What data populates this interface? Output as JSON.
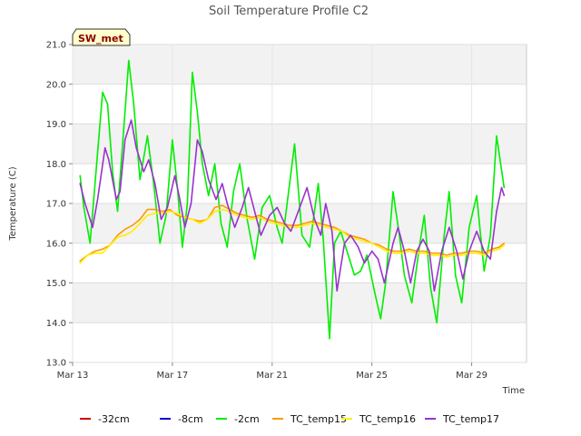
{
  "chart_data": {
    "type": "line",
    "title": "Soil Temperature Profile C2",
    "xlabel": "Time",
    "ylabel": "Temperature (C)",
    "badge": "SW_met",
    "ylim": [
      13.0,
      21.0
    ],
    "xlim": [
      0,
      18.2
    ],
    "yticks": [
      13.0,
      14.0,
      15.0,
      16.0,
      17.0,
      18.0,
      19.0,
      20.0,
      21.0
    ],
    "ytick_labels": [
      "13.0",
      "14.0",
      "15.0",
      "16.0",
      "17.0",
      "18.0",
      "19.0",
      "20.0",
      "21.0"
    ],
    "xticks": [
      0,
      4,
      8,
      12,
      16
    ],
    "xtick_labels": [
      "Mar 13",
      "Mar 17",
      "Mar 21",
      "Mar 25",
      "Mar 29"
    ],
    "grid": true,
    "legend_placement": "bottom",
    "series": [
      {
        "name": "-32cm",
        "color": "#cc0000",
        "x": [],
        "y": []
      },
      {
        "name": "-8cm",
        "color": "#0000cc",
        "x": [],
        "y": []
      },
      {
        "name": "-2cm",
        "color": "#00ee00",
        "x": [
          0.3,
          0.45,
          0.7,
          0.9,
          1.2,
          1.4,
          1.6,
          1.8,
          2.1,
          2.25,
          2.45,
          2.7,
          3.0,
          3.25,
          3.5,
          3.75,
          4.0,
          4.2,
          4.4,
          4.6,
          4.8,
          5.0,
          5.2,
          5.45,
          5.7,
          5.95,
          6.2,
          6.45,
          6.7,
          7.0,
          7.3,
          7.6,
          7.9,
          8.2,
          8.4,
          8.6,
          8.9,
          9.2,
          9.5,
          9.85,
          10.05,
          10.3,
          10.5,
          10.75,
          11.05,
          11.3,
          11.55,
          11.8,
          12.1,
          12.35,
          12.55,
          12.85,
          13.1,
          13.3,
          13.6,
          13.9,
          14.1,
          14.35,
          14.6,
          14.9,
          15.1,
          15.35,
          15.6,
          15.9,
          16.2,
          16.5,
          16.75,
          17.0,
          17.3
        ],
        "y": [
          17.7,
          16.9,
          16.0,
          17.5,
          19.8,
          19.5,
          17.8,
          16.8,
          19.3,
          20.6,
          19.5,
          17.6,
          18.7,
          17.5,
          16.0,
          16.7,
          18.6,
          17.4,
          15.9,
          17.0,
          20.3,
          19.3,
          18.0,
          17.2,
          18.0,
          16.5,
          15.9,
          17.3,
          18.0,
          16.6,
          15.6,
          16.9,
          17.2,
          16.4,
          16.0,
          17.0,
          18.5,
          16.2,
          15.9,
          17.5,
          16.1,
          13.6,
          16.0,
          16.3,
          15.7,
          15.2,
          15.3,
          15.7,
          14.8,
          14.1,
          15.0,
          17.3,
          16.2,
          15.2,
          14.5,
          15.9,
          16.7,
          14.9,
          14.0,
          16.2,
          17.3,
          15.2,
          14.5,
          16.4,
          17.2,
          15.3,
          16.2,
          18.7,
          17.4
        ]
      },
      {
        "name": "TC_temp15",
        "color": "#ff9900",
        "x": [
          0.3,
          0.6,
          0.9,
          1.2,
          1.5,
          1.8,
          2.1,
          2.4,
          2.7,
          3.0,
          3.3,
          3.6,
          3.9,
          4.2,
          4.5,
          4.8,
          5.1,
          5.4,
          5.7,
          6.0,
          6.3,
          6.6,
          6.9,
          7.2,
          7.5,
          7.8,
          8.1,
          8.4,
          8.7,
          9.0,
          9.3,
          9.6,
          9.9,
          10.2,
          10.5,
          10.8,
          11.1,
          11.4,
          11.7,
          12.0,
          12.3,
          12.6,
          12.9,
          13.2,
          13.5,
          13.8,
          14.1,
          14.4,
          14.7,
          15.0,
          15.3,
          15.6,
          15.9,
          16.2,
          16.5,
          16.8,
          17.1,
          17.3
        ],
        "y": [
          15.55,
          15.7,
          15.8,
          15.85,
          15.95,
          16.2,
          16.35,
          16.45,
          16.6,
          16.85,
          16.85,
          16.8,
          16.85,
          16.7,
          16.65,
          16.6,
          16.55,
          16.6,
          16.9,
          16.95,
          16.85,
          16.75,
          16.7,
          16.65,
          16.7,
          16.6,
          16.55,
          16.5,
          16.45,
          16.45,
          16.5,
          16.55,
          16.5,
          16.45,
          16.4,
          16.3,
          16.2,
          16.15,
          16.1,
          16.0,
          15.95,
          15.85,
          15.8,
          15.8,
          15.85,
          15.8,
          15.8,
          15.75,
          15.75,
          15.7,
          15.75,
          15.75,
          15.8,
          15.8,
          15.75,
          15.85,
          15.9,
          16.0
        ]
      },
      {
        "name": "TC_temp16",
        "color": "#ffee00",
        "x": [
          0.3,
          0.6,
          0.9,
          1.2,
          1.5,
          1.8,
          2.1,
          2.4,
          2.7,
          3.0,
          3.3,
          3.6,
          3.9,
          4.2,
          4.5,
          4.8,
          5.1,
          5.4,
          5.7,
          6.0,
          6.3,
          6.6,
          6.9,
          7.2,
          7.5,
          7.8,
          8.1,
          8.4,
          8.7,
          9.0,
          9.3,
          9.6,
          9.9,
          10.2,
          10.5,
          10.8,
          11.1,
          11.4,
          11.7,
          12.0,
          12.3,
          12.6,
          12.9,
          13.2,
          13.5,
          13.8,
          14.1,
          14.4,
          14.7,
          15.0,
          15.3,
          15.6,
          15.9,
          16.2,
          16.5,
          16.8,
          17.1,
          17.3
        ],
        "y": [
          15.5,
          15.7,
          15.75,
          15.75,
          15.95,
          16.15,
          16.2,
          16.3,
          16.5,
          16.7,
          16.75,
          16.75,
          16.8,
          16.75,
          16.65,
          16.6,
          16.5,
          16.6,
          16.8,
          16.85,
          16.8,
          16.7,
          16.65,
          16.6,
          16.65,
          16.55,
          16.5,
          16.45,
          16.4,
          16.4,
          16.45,
          16.5,
          16.45,
          16.4,
          16.35,
          16.3,
          16.15,
          16.1,
          16.05,
          16.0,
          15.9,
          15.8,
          15.75,
          15.75,
          15.8,
          15.75,
          15.75,
          15.7,
          15.7,
          15.65,
          15.7,
          15.7,
          15.75,
          15.75,
          15.7,
          15.8,
          15.85,
          15.95
        ]
      },
      {
        "name": "TC_temp17",
        "color": "#9933cc",
        "x": [
          0.3,
          0.5,
          0.8,
          1.0,
          1.3,
          1.45,
          1.75,
          1.9,
          2.1,
          2.35,
          2.55,
          2.85,
          3.05,
          3.3,
          3.55,
          3.8,
          4.1,
          4.3,
          4.5,
          4.75,
          5.0,
          5.2,
          5.45,
          5.75,
          6.0,
          6.2,
          6.5,
          6.8,
          7.05,
          7.3,
          7.55,
          7.9,
          8.2,
          8.5,
          8.75,
          9.05,
          9.4,
          9.7,
          9.95,
          10.15,
          10.4,
          10.6,
          10.9,
          11.15,
          11.45,
          11.7,
          12.0,
          12.25,
          12.5,
          12.85,
          13.05,
          13.3,
          13.55,
          13.8,
          14.05,
          14.3,
          14.5,
          14.8,
          15.1,
          15.4,
          15.65,
          15.9,
          16.2,
          16.5,
          16.75,
          17.0,
          17.2,
          17.3
        ],
        "y": [
          17.5,
          17.0,
          16.4,
          17.1,
          18.4,
          18.1,
          17.1,
          17.3,
          18.6,
          19.1,
          18.4,
          17.8,
          18.1,
          17.5,
          16.6,
          16.9,
          17.7,
          17.1,
          16.4,
          17.0,
          18.6,
          18.3,
          17.6,
          17.1,
          17.5,
          17.0,
          16.4,
          16.9,
          17.4,
          16.8,
          16.2,
          16.7,
          16.9,
          16.5,
          16.3,
          16.8,
          17.4,
          16.6,
          16.2,
          17.0,
          16.3,
          14.8,
          16.0,
          16.2,
          15.9,
          15.5,
          15.8,
          15.6,
          15.0,
          16.0,
          16.4,
          15.8,
          15.0,
          15.8,
          16.1,
          15.8,
          14.8,
          15.8,
          16.4,
          15.8,
          15.1,
          15.8,
          16.3,
          15.8,
          15.6,
          16.8,
          17.4,
          17.2
        ]
      }
    ]
  }
}
